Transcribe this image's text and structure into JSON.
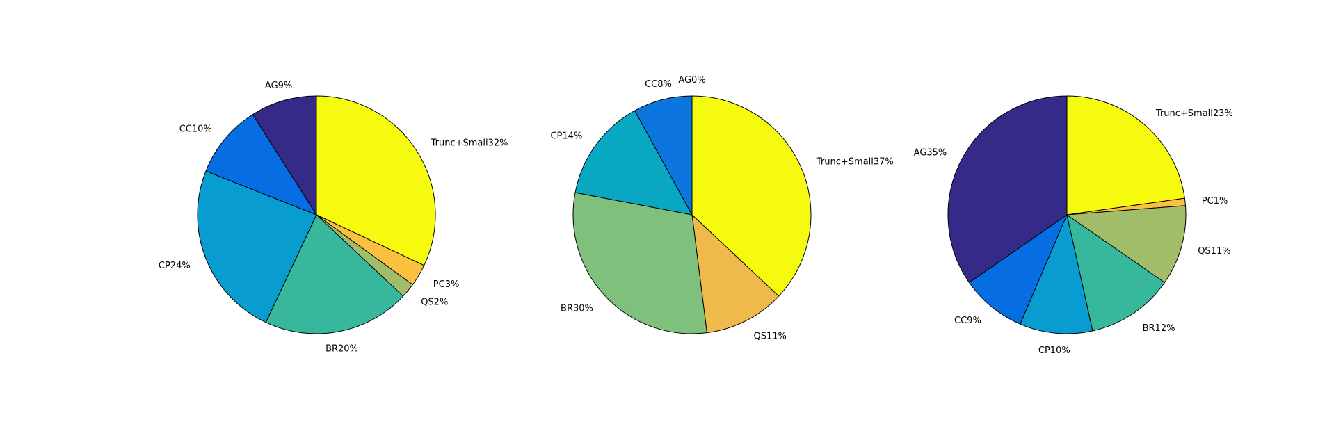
{
  "chart_data": [
    {
      "type": "pie",
      "slices": [
        {
          "label": "Trunc+Small32%",
          "value": 32,
          "color": "#f5fa0f"
        },
        {
          "label": "PC3%",
          "value": 3,
          "color": "#fbc03d"
        },
        {
          "label": "QS2%",
          "value": 2,
          "color": "#a2bd69"
        },
        {
          "label": "BR20%",
          "value": 20,
          "color": "#37b89d"
        },
        {
          "label": "CP24%",
          "value": 24,
          "color": "#089cd0"
        },
        {
          "label": "CC10%",
          "value": 10,
          "color": "#066ee2"
        },
        {
          "label": "AG9%",
          "value": 9,
          "color": "#352a87"
        }
      ]
    },
    {
      "type": "pie",
      "slices": [
        {
          "label": "Trunc+Small37%",
          "value": 37,
          "color": "#f5fa0f"
        },
        {
          "label": "QS11%",
          "value": 11,
          "color": "#f0b94b"
        },
        {
          "label": "BR30%",
          "value": 30,
          "color": "#7ec07c"
        },
        {
          "label": "CP14%",
          "value": 14,
          "color": "#08a8c3"
        },
        {
          "label": "CC8%",
          "value": 8,
          "color": "#0d76de"
        },
        {
          "label": "AG0%",
          "value": 0,
          "color": "#352a87"
        }
      ]
    },
    {
      "type": "pie",
      "slices": [
        {
          "label": "Trunc+Small23%",
          "value": 23,
          "color": "#f5fa0f"
        },
        {
          "label": "PC1%",
          "value": 1,
          "color": "#fbc03d"
        },
        {
          "label": "QS11%",
          "value": 11,
          "color": "#a2bd69"
        },
        {
          "label": "BR12%",
          "value": 12,
          "color": "#37b89d"
        },
        {
          "label": "CP10%",
          "value": 10,
          "color": "#089cd0"
        },
        {
          "label": "CC9%",
          "value": 9,
          "color": "#066ee2"
        },
        {
          "label": "AG35%",
          "value": 35,
          "color": "#352a87"
        }
      ]
    }
  ]
}
